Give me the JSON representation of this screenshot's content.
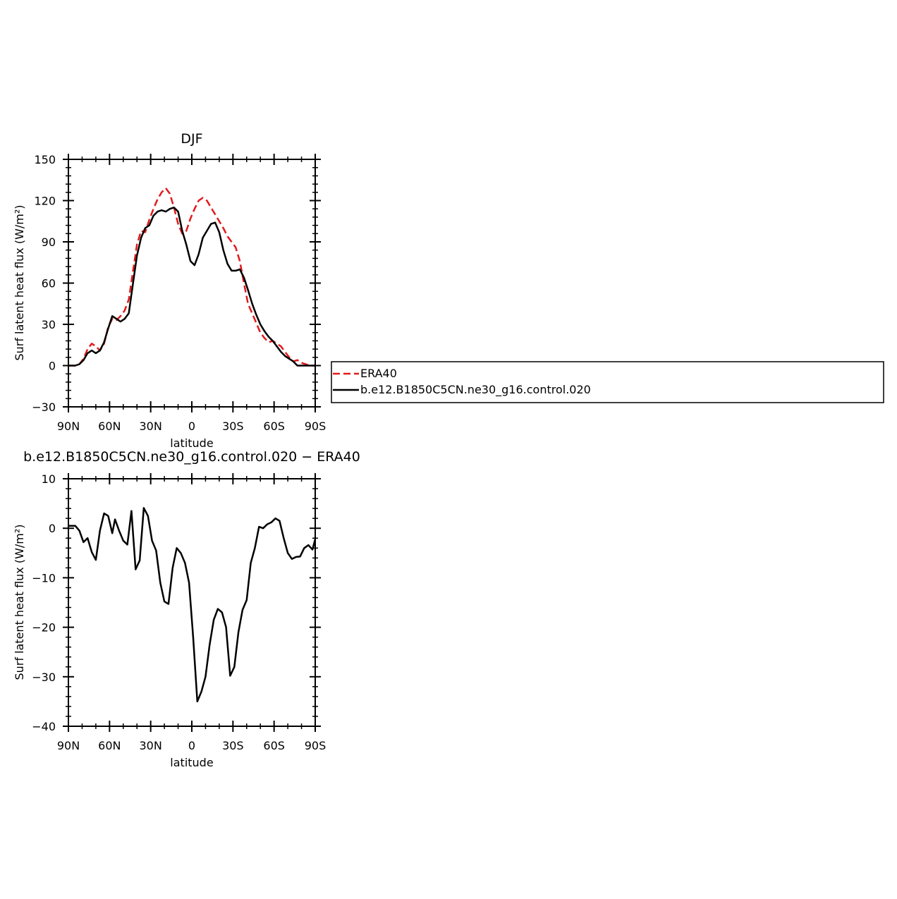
{
  "chart_data": [
    {
      "type": "line",
      "title": "DJF",
      "xlabel": "latitude",
      "ylabel": "Surf latent heat flux (W/m²)",
      "ylim": [
        -30,
        150
      ],
      "xlim": [
        90,
        -90
      ],
      "yticks": [
        -30,
        0,
        30,
        60,
        90,
        120,
        150
      ],
      "xticks": [
        90,
        60,
        30,
        0,
        -30,
        -60,
        -90
      ],
      "xtick_labels": [
        "90N",
        "60N",
        "30N",
        "0",
        "30S",
        "60S",
        "90S"
      ],
      "grid": false,
      "legend_position": "right",
      "series": [
        {
          "name": "ERA40",
          "color": "#e31a1c",
          "dash": "dashed",
          "x": [
            90,
            85,
            82,
            79,
            76,
            73,
            70,
            67,
            64,
            61,
            58,
            55,
            52,
            49,
            46,
            43,
            40,
            37,
            34,
            31,
            28,
            25,
            22,
            19,
            16,
            13,
            10,
            7,
            4,
            1,
            -2,
            -5,
            -8,
            -11,
            -14,
            -17,
            -20,
            -23,
            -26,
            -29,
            -32,
            -35,
            -38,
            -41,
            -44,
            -47,
            -50,
            -53,
            -56,
            -59,
            -62,
            -65,
            -68,
            -71,
            -74,
            -77,
            -80,
            -83,
            -86,
            -88,
            -90
          ],
          "y": [
            0,
            0,
            1,
            5,
            12,
            16,
            14,
            11,
            16,
            28,
            34,
            33,
            36,
            40,
            48,
            68,
            88,
            98,
            97,
            106,
            114,
            121,
            126,
            129,
            125,
            115,
            103,
            96,
            98,
            107,
            114,
            120,
            122,
            120,
            115,
            110,
            105,
            100,
            94,
            90,
            86,
            76,
            60,
            45,
            38,
            31,
            24,
            20,
            17,
            18,
            16,
            14,
            10,
            6,
            3,
            4,
            2,
            1,
            0,
            0,
            0
          ]
        },
        {
          "name": "b.e12.B1850C5CN.ne30_g16.control.020",
          "color": "#000000",
          "dash": "solid",
          "x": [
            90,
            85,
            82,
            79,
            76,
            73,
            70,
            67,
            64,
            61,
            58,
            55,
            52,
            49,
            46,
            43,
            40,
            37,
            34,
            31,
            28,
            25,
            22,
            19,
            16,
            13,
            10,
            7,
            4,
            1,
            -2,
            -5,
            -8,
            -11,
            -14,
            -17,
            -20,
            -23,
            -26,
            -29,
            -32,
            -35,
            -38,
            -41,
            -44,
            -47,
            -50,
            -53,
            -56,
            -59,
            -62,
            -65,
            -68,
            -71,
            -74,
            -77,
            -80,
            -83,
            -86,
            -88,
            -90
          ],
          "y": [
            0,
            0,
            1,
            4,
            9,
            11,
            9,
            11,
            17,
            27,
            36,
            34,
            32,
            34,
            38,
            59,
            80,
            93,
            100,
            102,
            109,
            112,
            113,
            112,
            114,
            115,
            112,
            98,
            88,
            76,
            73,
            81,
            93,
            98,
            103,
            104,
            97,
            84,
            74,
            69,
            69,
            70,
            64,
            55,
            45,
            37,
            30,
            25,
            21,
            18,
            14,
            10,
            7,
            5,
            3,
            0,
            0,
            0,
            0,
            0,
            0
          ]
        }
      ]
    },
    {
      "type": "line",
      "title": "b.e12.B1850C5CN.ne30_g16.control.020 − ERA40",
      "xlabel": "latitude",
      "ylabel": "Surf latent heat flux (W/m²)",
      "ylim": [
        -40,
        10
      ],
      "xlim": [
        90,
        -90
      ],
      "yticks": [
        -40,
        -30,
        -20,
        -10,
        0,
        10
      ],
      "xticks": [
        90,
        60,
        30,
        0,
        -30,
        -60,
        -90
      ],
      "xtick_labels": [
        "90N",
        "60N",
        "30N",
        "0",
        "30S",
        "60S",
        "90S"
      ],
      "grid": false,
      "series": [
        {
          "name": "",
          "color": "#000000",
          "dash": "solid",
          "x": [
            90,
            85,
            82,
            79,
            76,
            73,
            70,
            67,
            64,
            61,
            58,
            56,
            53,
            50,
            47,
            44,
            41,
            38,
            35,
            32,
            29,
            26,
            23,
            20,
            17,
            14,
            11,
            8,
            5,
            2,
            -1,
            -4,
            -7,
            -10,
            -13,
            -16,
            -19,
            -22,
            -25,
            -28,
            -31,
            -34,
            -37,
            -40,
            -43,
            -46,
            -49,
            -52,
            -55,
            -58,
            -61,
            -64,
            -67,
            -70,
            -73,
            -76,
            -79,
            -82,
            -85,
            -88,
            -90
          ],
          "y": [
            0.5,
            0.5,
            -0.5,
            -2.8,
            -2,
            -4.8,
            -6.4,
            -0.5,
            3,
            2.5,
            -1,
            1.8,
            -0.5,
            -2.5,
            -3.3,
            3.5,
            -8.3,
            -6.5,
            4.1,
            2.5,
            -2.5,
            -4.5,
            -11,
            -14.8,
            -15.3,
            -8,
            -4,
            -5,
            -7,
            -11,
            -22,
            -35,
            -33,
            -30,
            -23.5,
            -18.5,
            -16.3,
            -17,
            -20,
            -29.8,
            -28,
            -21,
            -16.5,
            -14.5,
            -7,
            -4,
            0.3,
            0,
            0.8,
            1.2,
            2,
            1.5,
            -2,
            -5,
            -6.2,
            -5.8,
            -5.7,
            -4,
            -3.4,
            -4.3,
            -2.2
          ]
        }
      ]
    }
  ]
}
